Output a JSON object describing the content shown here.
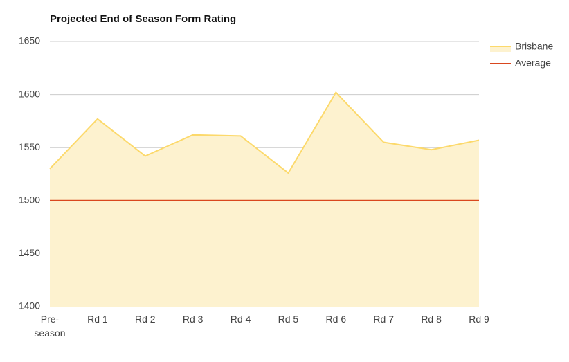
{
  "chart_data": {
    "type": "area",
    "title": "Projected End of Season Form Rating",
    "categories": [
      "Pre-season",
      "Rd 1",
      "Rd 2",
      "Rd 3",
      "Rd 4",
      "Rd 5",
      "Rd 6",
      "Rd 7",
      "Rd 8",
      "Rd 9"
    ],
    "series": [
      {
        "name": "Brisbane",
        "type": "area",
        "color": "#fcd96b",
        "fill": "#fdf2cf",
        "values": [
          1530,
          1577,
          1542,
          1562,
          1561,
          1526,
          1602,
          1555,
          1548,
          1557
        ]
      },
      {
        "name": "Average",
        "type": "line",
        "color": "#d9481f",
        "values": [
          1500,
          1500,
          1500,
          1500,
          1500,
          1500,
          1500,
          1500,
          1500,
          1500
        ]
      }
    ],
    "ylim": [
      1400,
      1650
    ],
    "yticks": [
      1400,
      1450,
      1500,
      1550,
      1600,
      1650
    ],
    "grid": true,
    "legend": "right"
  }
}
